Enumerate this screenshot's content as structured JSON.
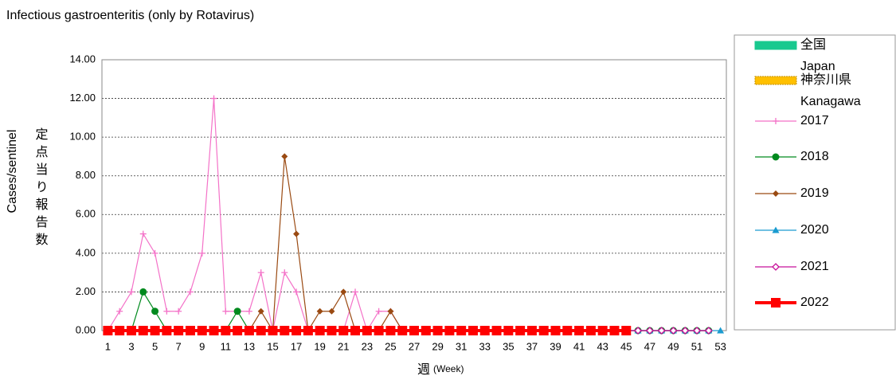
{
  "chart_data": {
    "type": "line",
    "title": "Infectious gastroenteritis (only by Rotavirus)",
    "y_label": "Cases/sentinel",
    "y_label_ja": "定点当り報告数",
    "x_label": "週",
    "x_label_sub": "(Week)",
    "categories": [
      1,
      null,
      3,
      null,
      5,
      null,
      7,
      null,
      9,
      null,
      11,
      null,
      13,
      null,
      15,
      null,
      17,
      null,
      19,
      null,
      21,
      null,
      23,
      null,
      25,
      null,
      27,
      null,
      29,
      null,
      31,
      null,
      33,
      null,
      35,
      null,
      37,
      null,
      39,
      null,
      41,
      null,
      43,
      null,
      45,
      null,
      47,
      null,
      49,
      null,
      51,
      null,
      53
    ],
    "ylim": [
      0,
      14
    ],
    "yticks": [
      {
        "value": 0,
        "label": "0.00"
      },
      {
        "value": 2,
        "label": "2.00"
      },
      {
        "value": 4,
        "label": "4.00"
      },
      {
        "value": 6,
        "label": "6.00"
      },
      {
        "value": 8,
        "label": "8.00"
      },
      {
        "value": 10,
        "label": "10.00"
      },
      {
        "value": 12,
        "label": "12.00"
      },
      {
        "value": 14,
        "label": "14.00"
      }
    ],
    "grid": true,
    "legend_position": "right",
    "series": [
      {
        "name": "全国\nJapan",
        "color": "#19c98f",
        "legend_style": "bar",
        "values": [
          null,
          null,
          null,
          null,
          null,
          null,
          null,
          null,
          null,
          null,
          null,
          null,
          null,
          null,
          null,
          null,
          null,
          null,
          null,
          null,
          null,
          null,
          null,
          null,
          null,
          null,
          null,
          null,
          null,
          null,
          null,
          null,
          null,
          null,
          null,
          null,
          null,
          null,
          null,
          null,
          null,
          null,
          null,
          null,
          null,
          null,
          null,
          null,
          null,
          null,
          null,
          null,
          null
        ]
      },
      {
        "name": "神奈川県\nKanagawa",
        "color": "#ffc000",
        "legend_style": "bar",
        "values": [
          null,
          null,
          null,
          null,
          null,
          null,
          null,
          null,
          null,
          null,
          null,
          null,
          null,
          null,
          null,
          null,
          null,
          null,
          null,
          null,
          null,
          null,
          null,
          null,
          null,
          null,
          null,
          null,
          null,
          null,
          null,
          null,
          null,
          null,
          null,
          null,
          null,
          null,
          null,
          null,
          null,
          null,
          null,
          null,
          null,
          null,
          null,
          null,
          null,
          null,
          null,
          null,
          null
        ]
      },
      {
        "name": "2017",
        "color": "#f472c8",
        "marker": "plus",
        "values": [
          0,
          1,
          2,
          5,
          4,
          1,
          1,
          2,
          4,
          12,
          1,
          1,
          1,
          3,
          0,
          3,
          2,
          0,
          0,
          0,
          0,
          2,
          0,
          1,
          1,
          0,
          0,
          0,
          0,
          0,
          0,
          0,
          0,
          0,
          0,
          0,
          0,
          0,
          0,
          0,
          0,
          0,
          0,
          0,
          0,
          0,
          0,
          0,
          0,
          0,
          0,
          0,
          null
        ]
      },
      {
        "name": "2018",
        "color": "#008a1e",
        "marker": "circle",
        "values": [
          0,
          0,
          0,
          2,
          1,
          0,
          0,
          0,
          0,
          0,
          0,
          1,
          0,
          0,
          0,
          0,
          0,
          0,
          0,
          0,
          0,
          0,
          0,
          0,
          0,
          0,
          0,
          0,
          0,
          0,
          0,
          0,
          0,
          0,
          0,
          0,
          0,
          0,
          0,
          0,
          0,
          0,
          0,
          0,
          0,
          0,
          0,
          0,
          0,
          0,
          0,
          0,
          null
        ]
      },
      {
        "name": "2019",
        "color": "#9a4a12",
        "marker": "diamond",
        "values": [
          0,
          0,
          0,
          0,
          0,
          0,
          0,
          0,
          0,
          0,
          0,
          0,
          0,
          1,
          0,
          9,
          5,
          0,
          1,
          1,
          2,
          0,
          0,
          0,
          1,
          0,
          0,
          0,
          0,
          0,
          0,
          0,
          0,
          0,
          0,
          0,
          0,
          0,
          0,
          0,
          0,
          0,
          0,
          0,
          0,
          0,
          0,
          0,
          0,
          0,
          0,
          0,
          null
        ]
      },
      {
        "name": "2020",
        "color": "#1a9bd0",
        "marker": "triangle",
        "values": [
          0,
          0,
          0,
          0,
          0,
          0,
          0,
          0,
          0,
          0,
          0,
          0,
          0,
          0,
          0,
          0,
          0,
          0,
          0,
          0,
          0,
          0,
          0,
          0,
          0,
          0,
          0,
          0,
          0,
          0,
          0,
          0,
          0,
          0,
          0,
          0,
          0,
          0,
          0,
          0,
          0,
          0,
          0,
          0,
          0,
          0,
          0,
          0,
          0,
          0,
          0,
          0,
          0
        ]
      },
      {
        "name": "2021",
        "color": "#c8109a",
        "marker": "diamond-open",
        "values": [
          0,
          0,
          0,
          0,
          0,
          0,
          0,
          0,
          0,
          0,
          0,
          0,
          0,
          0,
          0,
          0,
          0,
          0,
          0,
          0,
          0,
          0,
          0,
          0,
          0,
          0,
          0,
          0,
          0,
          0,
          0,
          0,
          0,
          0,
          0,
          0,
          0,
          0,
          0,
          0,
          0,
          0,
          0,
          0,
          0,
          0,
          0,
          0,
          0,
          0,
          0,
          0,
          null
        ]
      },
      {
        "name": "2022",
        "color": "#ff0000",
        "marker": "square",
        "width": 4,
        "values": [
          0,
          0,
          0,
          0,
          0,
          0,
          0,
          0,
          0,
          0,
          0,
          0,
          0,
          0,
          0,
          0,
          0,
          0,
          0,
          0,
          0,
          0,
          0,
          0,
          0,
          0,
          0,
          0,
          0,
          0,
          0,
          0,
          0,
          0,
          0,
          0,
          0,
          0,
          0,
          0,
          0,
          0,
          0,
          0,
          0,
          null,
          null,
          null,
          null,
          null,
          null,
          null,
          null
        ]
      }
    ]
  }
}
